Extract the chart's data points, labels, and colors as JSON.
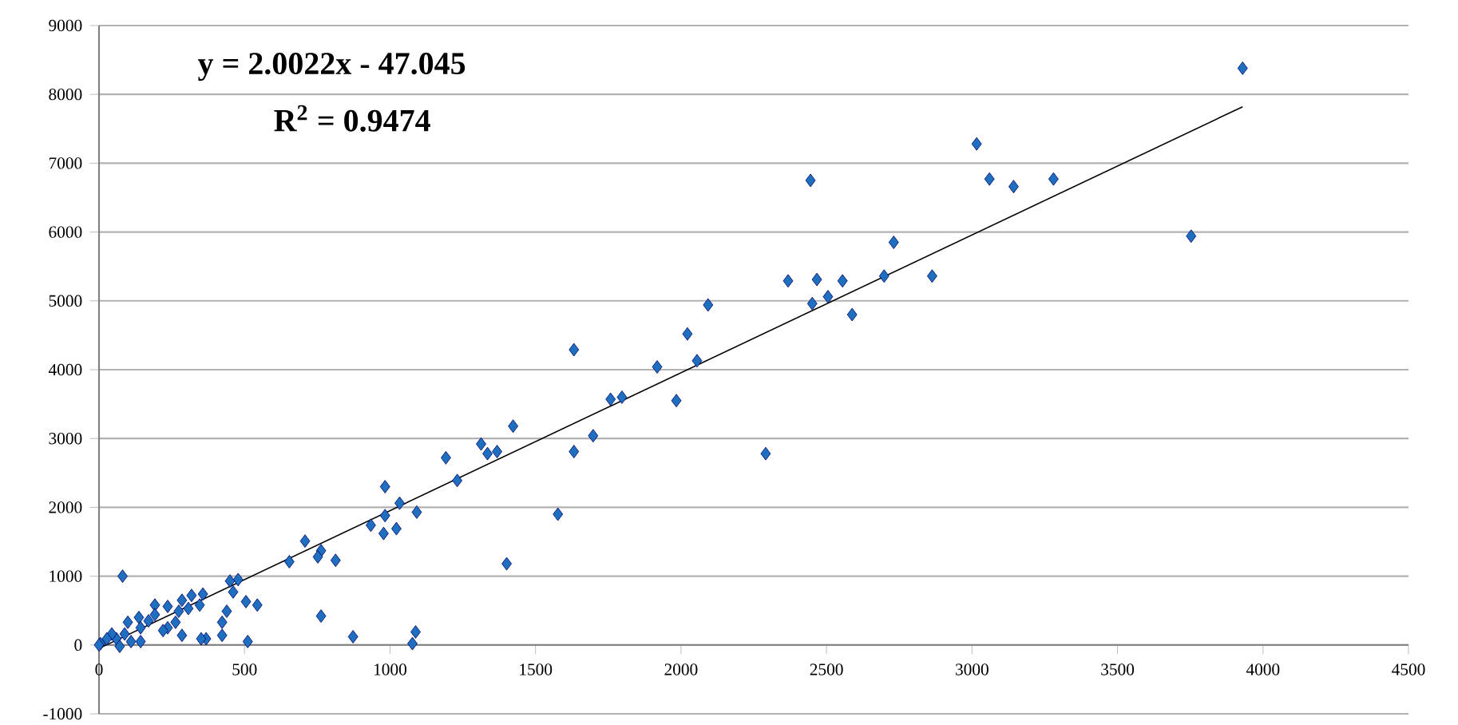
{
  "chart_data": {
    "type": "scatter",
    "xlim": [
      0,
      4500
    ],
    "ylim": [
      -1000,
      9000
    ],
    "xticks": [
      0,
      500,
      1000,
      1500,
      2000,
      2500,
      3000,
      3500,
      4000,
      4500
    ],
    "yticks": [
      -1000,
      0,
      1000,
      2000,
      3000,
      4000,
      5000,
      6000,
      7000,
      8000,
      9000
    ],
    "grid": "y",
    "marker": "diamond",
    "annotations": [
      "y = 2.0022x - 47.045",
      "R$^{2}$ = 0.9474"
    ],
    "series": [
      {
        "color": "#1f6fc0",
        "x": [
          3930,
          3016,
          3060,
          3143,
          3280,
          2445,
          3753,
          2731,
          2698,
          2863,
          2467,
          2368,
          2555,
          2505,
          2451,
          2588,
          2093,
          2022,
          2055,
          1918,
          1632,
          1984,
          1758,
          1797,
          1698,
          1632,
          2291,
          1423,
          1313,
          1335,
          1368,
          1192,
          1231,
          1577,
          1401,
          983,
          1033,
          983,
          934,
          1022,
          978,
          1092,
          708,
          763,
          752,
          813,
          654,
          763,
          873,
          1088,
          1077,
          81,
          478,
          450,
          461,
          505,
          544,
          439,
          423,
          423,
          368,
          511,
          351,
          285,
          357,
          318,
          285,
          346,
          307,
          274,
          263,
          236,
          236,
          192,
          192,
          170,
          137,
          143,
          99,
          88,
          110,
          143,
          60,
          44,
          27,
          5,
          0,
          71,
          220
        ],
        "values": [
          8380,
          7280,
          6770,
          6660,
          6770,
          6750,
          5940,
          5850,
          5360,
          5360,
          5310,
          5290,
          5290,
          5060,
          4960,
          4800,
          4940,
          4520,
          4130,
          4040,
          4290,
          3550,
          3570,
          3600,
          3040,
          2810,
          2780,
          3180,
          2920,
          2780,
          2810,
          2720,
          2390,
          1900,
          1180,
          2300,
          2060,
          1880,
          1740,
          1690,
          1620,
          1930,
          1510,
          1370,
          1280,
          1230,
          1210,
          420,
          120,
          190,
          20,
          1000,
          950,
          930,
          770,
          630,
          580,
          490,
          330,
          140,
          90,
          50,
          90,
          140,
          740,
          720,
          650,
          580,
          530,
          490,
          330,
          250,
          560,
          580,
          440,
          350,
          400,
          250,
          330,
          160,
          50,
          50,
          90,
          160,
          90,
          20,
          0,
          -20,
          210
        ]
      },
      {
        "type": "line",
        "color": "#000000",
        "marker": "none",
        "line_style": "solid",
        "x": [
          0,
          3930
        ],
        "values": [
          -50,
          7820
        ]
      }
    ]
  }
}
